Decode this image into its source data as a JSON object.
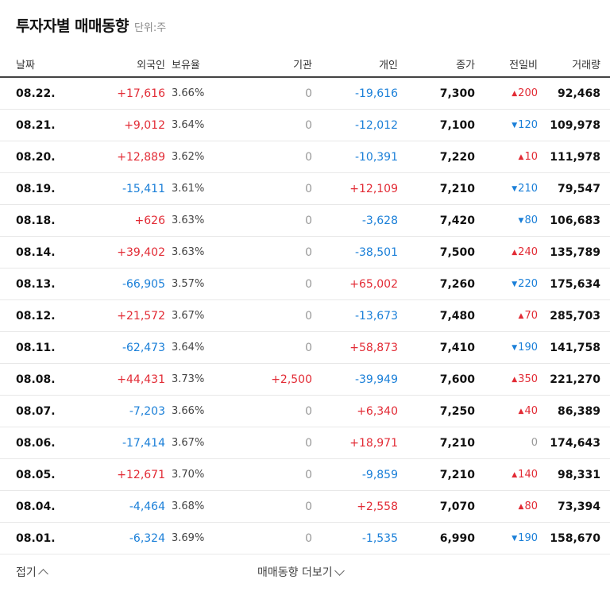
{
  "title": "투자자별 매매동향",
  "unit": "단위:주",
  "headers": {
    "date": "날짜",
    "foreign": "외국인",
    "holding": "보유율",
    "institution": "기관",
    "individual": "개인",
    "close": "종가",
    "change": "전일비",
    "volume": "거래량"
  },
  "rows": [
    {
      "date": "08.22.",
      "foreign": "+17,616",
      "holding": "3.66%",
      "institution": "0",
      "individual": "-19,616",
      "close": "7,300",
      "change_dir": "up",
      "change": "200",
      "volume": "92,468"
    },
    {
      "date": "08.21.",
      "foreign": "+9,012",
      "holding": "3.64%",
      "institution": "0",
      "individual": "-12,012",
      "close": "7,100",
      "change_dir": "down",
      "change": "120",
      "volume": "109,978"
    },
    {
      "date": "08.20.",
      "foreign": "+12,889",
      "holding": "3.62%",
      "institution": "0",
      "individual": "-10,391",
      "close": "7,220",
      "change_dir": "up",
      "change": "10",
      "volume": "111,978"
    },
    {
      "date": "08.19.",
      "foreign": "-15,411",
      "holding": "3.61%",
      "institution": "0",
      "individual": "+12,109",
      "close": "7,210",
      "change_dir": "down",
      "change": "210",
      "volume": "79,547"
    },
    {
      "date": "08.18.",
      "foreign": "+626",
      "holding": "3.63%",
      "institution": "0",
      "individual": "-3,628",
      "close": "7,420",
      "change_dir": "down",
      "change": "80",
      "volume": "106,683"
    },
    {
      "date": "08.14.",
      "foreign": "+39,402",
      "holding": "3.63%",
      "institution": "0",
      "individual": "-38,501",
      "close": "7,500",
      "change_dir": "up",
      "change": "240",
      "volume": "135,789"
    },
    {
      "date": "08.13.",
      "foreign": "-66,905",
      "holding": "3.57%",
      "institution": "0",
      "individual": "+65,002",
      "close": "7,260",
      "change_dir": "down",
      "change": "220",
      "volume": "175,634"
    },
    {
      "date": "08.12.",
      "foreign": "+21,572",
      "holding": "3.67%",
      "institution": "0",
      "individual": "-13,673",
      "close": "7,480",
      "change_dir": "up",
      "change": "70",
      "volume": "285,703"
    },
    {
      "date": "08.11.",
      "foreign": "-62,473",
      "holding": "3.64%",
      "institution": "0",
      "individual": "+58,873",
      "close": "7,410",
      "change_dir": "down",
      "change": "190",
      "volume": "141,758"
    },
    {
      "date": "08.08.",
      "foreign": "+44,431",
      "holding": "3.73%",
      "institution": "+2,500",
      "individual": "-39,949",
      "close": "7,600",
      "change_dir": "up",
      "change": "350",
      "volume": "221,270"
    },
    {
      "date": "08.07.",
      "foreign": "-7,203",
      "holding": "3.66%",
      "institution": "0",
      "individual": "+6,340",
      "close": "7,250",
      "change_dir": "up",
      "change": "40",
      "volume": "86,389"
    },
    {
      "date": "08.06.",
      "foreign": "-17,414",
      "holding": "3.67%",
      "institution": "0",
      "individual": "+18,971",
      "close": "7,210",
      "change_dir": "none",
      "change": "0",
      "volume": "174,643"
    },
    {
      "date": "08.05.",
      "foreign": "+12,671",
      "holding": "3.70%",
      "institution": "0",
      "individual": "-9,859",
      "close": "7,210",
      "change_dir": "up",
      "change": "140",
      "volume": "98,331"
    },
    {
      "date": "08.04.",
      "foreign": "-4,464",
      "holding": "3.68%",
      "institution": "0",
      "individual": "+2,558",
      "close": "7,070",
      "change_dir": "up",
      "change": "80",
      "volume": "73,394"
    },
    {
      "date": "08.01.",
      "foreign": "-6,324",
      "holding": "3.69%",
      "institution": "0",
      "individual": "-1,535",
      "close": "6,990",
      "change_dir": "down",
      "change": "190",
      "volume": "158,670"
    }
  ],
  "footer": {
    "fold_label": "접기",
    "more_label": "매매동향 더보기"
  },
  "colors": {
    "up": "#e22b35",
    "down": "#1a7fd8",
    "neutral": "#999999"
  },
  "icons": {
    "up_arrow": "triangle-up-icon",
    "down_arrow": "triangle-down-icon",
    "fold": "chevron-up-icon",
    "more": "chevron-down-icon"
  }
}
